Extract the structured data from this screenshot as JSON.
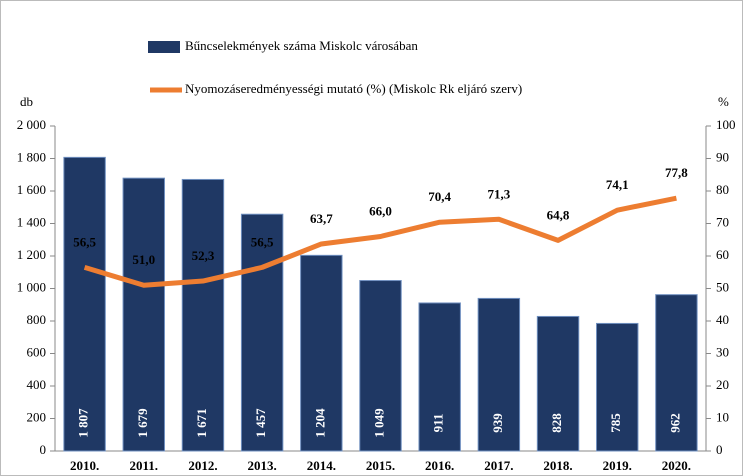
{
  "chart_data": {
    "type": "bar_line",
    "categories": [
      "2010.",
      "2011.",
      "2012.",
      "2013.",
      "2014.",
      "2015.",
      "2016.",
      "2017.",
      "2018.",
      "2019.",
      "2020."
    ],
    "series": [
      {
        "name": "Bűncselekmények száma Miskolc városában",
        "type": "bar",
        "color": "#1f3864",
        "values": [
          1807,
          1679,
          1671,
          1457,
          1204,
          1049,
          911,
          939,
          828,
          785,
          962
        ],
        "value_labels": [
          "1 807",
          "1 679",
          "1 671",
          "1 457",
          "1 204",
          "1 049",
          "911",
          "939",
          "828",
          "785",
          "962"
        ]
      },
      {
        "name": "Nyomozáseredményességi mutató (%) (Miskolc Rk eljáró szerv)",
        "type": "line",
        "axis": "y2",
        "color": "#ed7d31",
        "values": [
          56.5,
          51.0,
          52.3,
          56.5,
          63.7,
          66.0,
          70.4,
          71.3,
          64.8,
          74.1,
          77.8
        ],
        "value_labels": [
          "56,5",
          "51,0",
          "52,3",
          "56,5",
          "63,7",
          "66,0",
          "70,4",
          "71,3",
          "64,8",
          "74,1",
          "77,8"
        ]
      }
    ],
    "y_label": "db",
    "y2_label": "%",
    "ylim": [
      0,
      2000
    ],
    "yticks": [
      0,
      200,
      400,
      600,
      800,
      {
        "value": 1000,
        "label": "1 000"
      },
      {
        "value": 1200,
        "label": "1 200"
      },
      {
        "value": 1400,
        "label": "1 400"
      },
      {
        "value": 1600,
        "label": "1 600"
      },
      {
        "value": 1800,
        "label": "1 800"
      },
      {
        "value": 2000,
        "label": "2 000"
      }
    ],
    "y2lim": [
      0,
      100
    ],
    "y2ticks": [
      0,
      10,
      20,
      30,
      40,
      50,
      60,
      70,
      80,
      90,
      100
    ],
    "grid": false
  }
}
